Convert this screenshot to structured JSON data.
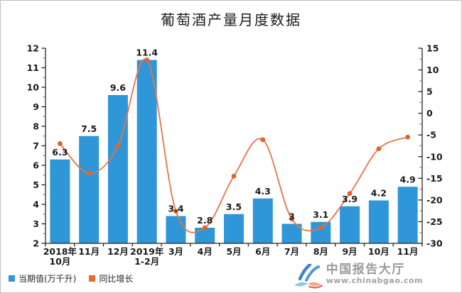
{
  "colors": {
    "bar": "#2F96D8",
    "line": "#E8734A",
    "marker": "#E2622C",
    "axis": "#262626",
    "minor_tick": "#D45B43",
    "tick_label": "#1a1a1a",
    "value_label": "#1a1a1a",
    "legend_bar_swatch": "#2F96D8",
    "legend_line_swatch": "#E8682F"
  },
  "legend": {
    "items": [
      {
        "label": "当期值(万千升)",
        "color": "#2F96D8"
      },
      {
        "label": "同比增长",
        "color": "#E8682F"
      }
    ]
  },
  "watermark": {
    "brand": "中国报告大厅",
    "url": "www.chinabgao.com"
  },
  "chart_data": {
    "type": "bar",
    "title": "葡萄酒产量月度数据",
    "categories": [
      "2018年\n10月",
      "11月",
      "12月",
      "2019年\n1-2月",
      "3月",
      "4月",
      "5月",
      "6月",
      "7月",
      "8月",
      "9月",
      "10月",
      "11月"
    ],
    "series": [
      {
        "name": "当期值(万千升)",
        "type": "bar",
        "axis": "left",
        "color": "#2F96D8",
        "values": [
          6.3,
          7.5,
          9.6,
          11.4,
          3.4,
          2.8,
          3.5,
          4.3,
          3,
          3.1,
          3.9,
          4.2,
          4.9
        ]
      },
      {
        "name": "同比增长",
        "type": "line",
        "axis": "right",
        "color": "#E8734A",
        "values": [
          -7,
          -13.8,
          -7.6,
          12.3,
          -22.6,
          -26.4,
          -14.5,
          -6.1,
          -24.4,
          -26.4,
          -18.5,
          -8.2,
          -5.5
        ]
      }
    ],
    "xlabel": "",
    "ylabel_left": "",
    "ylabel_right": "",
    "y_left": {
      "min": 2,
      "max": 12,
      "major": 1,
      "minor": 0.5
    },
    "y_right": {
      "min": -30,
      "max": 15,
      "major": 5,
      "minor": 2.5
    },
    "grid": false,
    "legend_position": "bottom-left",
    "bar_value_labels_visible": true
  }
}
